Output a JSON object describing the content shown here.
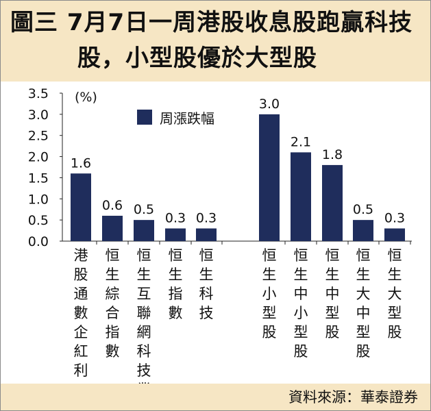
{
  "header": {
    "title_line1": "圖三  7月7日一周港股收息股跑贏科技",
    "title_line2": "股，小型股優於大型股"
  },
  "footer": {
    "source": "資料來源：華泰證券"
  },
  "colors": {
    "bar": "#1f2d5c",
    "band": "#f6e6c4"
  },
  "chart_data": {
    "type": "bar",
    "categories": [
      "港股通數企紅利",
      "恒生綜合指數",
      "恒生互聯網科技業",
      "恒生指數",
      "恒生科技",
      "恒生小型股",
      "恒生中小型股",
      "恒生中型股",
      "恒生大中型股",
      "恒生大型股"
    ],
    "series": [
      {
        "name": "周漲跌幅",
        "values": [
          1.6,
          0.6,
          0.5,
          0.3,
          0.3,
          3.0,
          2.1,
          1.8,
          0.5,
          0.3
        ]
      }
    ],
    "data_labels": [
      "1.6",
      "0.6",
      "0.5",
      "0.3",
      "0.3",
      "3.0",
      "2.1",
      "1.8",
      "0.5",
      "0.3"
    ],
    "ylabel": "(%)",
    "yticks": [
      "0.0",
      "0.5",
      "1.0",
      "1.5",
      "2.0",
      "2.5",
      "3.0",
      "3.5"
    ],
    "ylim": [
      0,
      3.5
    ],
    "legend": "top-left",
    "grid": false
  }
}
